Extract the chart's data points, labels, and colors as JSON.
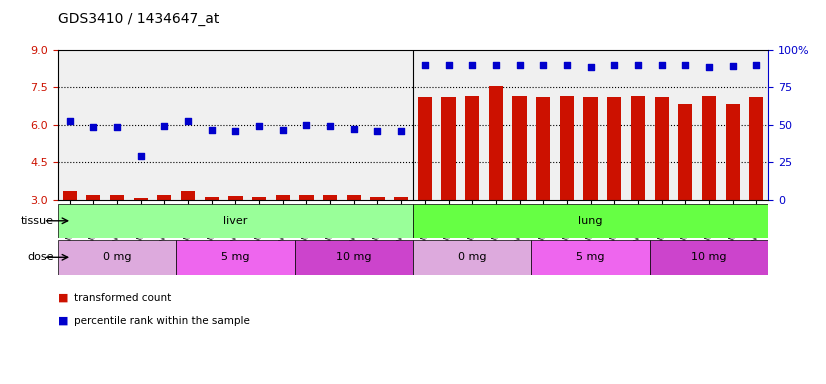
{
  "title": "GDS3410 / 1434647_at",
  "samples": [
    "GSM326944",
    "GSM326946",
    "GSM326948",
    "GSM326950",
    "GSM326952",
    "GSM326954",
    "GSM326956",
    "GSM326958",
    "GSM326960",
    "GSM326962",
    "GSM326964",
    "GSM326966",
    "GSM326968",
    "GSM326970",
    "GSM326972",
    "GSM326943",
    "GSM326945",
    "GSM326947",
    "GSM326949",
    "GSM326951",
    "GSM326953",
    "GSM326955",
    "GSM326957",
    "GSM326959",
    "GSM326961",
    "GSM326963",
    "GSM326965",
    "GSM326967",
    "GSM326969",
    "GSM326971"
  ],
  "bar_values": [
    3.35,
    3.2,
    3.2,
    3.05,
    3.18,
    3.35,
    3.1,
    3.15,
    3.1,
    3.2,
    3.18,
    3.2,
    3.18,
    3.1,
    3.1,
    7.1,
    7.1,
    7.15,
    7.55,
    7.15,
    7.1,
    7.15,
    7.1,
    7.12,
    7.15,
    7.1,
    6.85,
    7.15,
    6.85,
    7.1
  ],
  "percentile_values": [
    6.15,
    5.9,
    5.9,
    4.75,
    5.95,
    6.15,
    5.8,
    5.75,
    5.95,
    5.8,
    6.0,
    5.95,
    5.85,
    5.75,
    5.75,
    8.4,
    8.4,
    8.4,
    8.4,
    8.4,
    8.4,
    8.4,
    8.3,
    8.4,
    8.4,
    8.4,
    8.4,
    8.3,
    8.35,
    8.4
  ],
  "ylim_left": [
    3.0,
    9.0
  ],
  "ylim_right": [
    0,
    100
  ],
  "yticks_left": [
    3.0,
    4.5,
    6.0,
    7.5,
    9.0
  ],
  "yticks_right": [
    0,
    25,
    50,
    75,
    100
  ],
  "bar_color": "#cc1100",
  "dot_color": "#0000cc",
  "tissue_groups": [
    {
      "label": "liver",
      "start": 0,
      "end": 15,
      "color": "#99ff99"
    },
    {
      "label": "lung",
      "start": 15,
      "end": 30,
      "color": "#66ff44"
    }
  ],
  "dose_groups": [
    {
      "label": "0 mg",
      "start": 0,
      "end": 5,
      "color": "#ddaadd"
    },
    {
      "label": "5 mg",
      "start": 5,
      "end": 10,
      "color": "#ee66ee"
    },
    {
      "label": "10 mg",
      "start": 10,
      "end": 15,
      "color": "#cc44cc"
    },
    {
      "label": "0 mg",
      "start": 15,
      "end": 20,
      "color": "#ddaadd"
    },
    {
      "label": "5 mg",
      "start": 20,
      "end": 25,
      "color": "#ee66ee"
    },
    {
      "label": "10 mg",
      "start": 25,
      "end": 30,
      "color": "#cc44cc"
    }
  ],
  "legend_items": [
    {
      "label": "transformed count",
      "color": "#cc1100"
    },
    {
      "label": "percentile rank within the sample",
      "color": "#0000cc"
    }
  ],
  "grid_color": "black",
  "grid_style": "dotted",
  "bg_color": "#f0f0f0",
  "plot_bg": "white"
}
